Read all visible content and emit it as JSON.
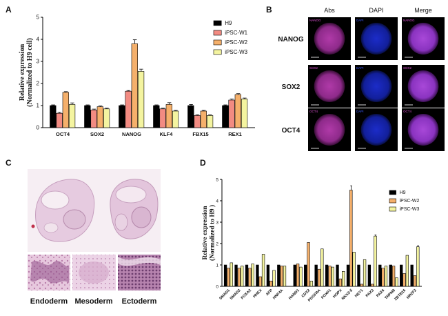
{
  "panels": {
    "a": "A",
    "b": "B",
    "c": "C",
    "d": "D"
  },
  "chart_data": [
    {
      "type": "bar",
      "panel": "A",
      "ylabel_line1": "Relative expression",
      "ylabel_line2": "(Normalized to H9 cell)",
      "ylim": [
        0,
        5
      ],
      "yticks": [
        "0",
        "1",
        "2",
        "3",
        "4",
        "5"
      ],
      "categories": [
        "OCT4",
        "SOX2",
        "NANOG",
        "KLF4",
        "FBX15",
        "REX1"
      ],
      "legend_position": "top-right",
      "grid": false,
      "series": [
        {
          "name": "H9",
          "color": "#000000",
          "values": [
            1.0,
            1.0,
            1.0,
            1.0,
            1.0,
            1.0
          ],
          "errors": [
            0.03,
            0.03,
            0.03,
            0.03,
            0.05,
            0.03
          ]
        },
        {
          "name": "iPSC-W1",
          "color": "#f28b82",
          "values": [
            0.65,
            0.8,
            1.65,
            0.85,
            0.55,
            1.25
          ],
          "errors": [
            0.04,
            0.04,
            0.03,
            0.03,
            0.03,
            0.05
          ]
        },
        {
          "name": "iPSC-W2",
          "color": "#f5b06b",
          "values": [
            1.6,
            0.95,
            3.8,
            1.05,
            0.75,
            1.5
          ],
          "errors": [
            0.03,
            0.03,
            0.18,
            0.08,
            0.03,
            0.04
          ]
        },
        {
          "name": "iPSC-W3",
          "color": "#f4f4a0",
          "values": [
            1.05,
            0.85,
            2.55,
            0.75,
            0.55,
            1.3
          ],
          "errors": [
            0.07,
            0.03,
            0.1,
            0.03,
            0.03,
            0.04
          ]
        }
      ]
    },
    {
      "type": "bar",
      "panel": "D",
      "ylabel_line1": "Relative expression",
      "ylabel_line2": "(Normalized to H9 )",
      "ylim": [
        0,
        5
      ],
      "yticks": [
        "0",
        "1",
        "2",
        "3",
        "4",
        "5"
      ],
      "categories": [
        "SMAD1",
        "SMAD2",
        "FOXA2",
        "HHEX",
        "AFP",
        "HNF4A",
        "HAND1",
        "CDX2",
        "PDGFRA",
        "FOXF1",
        "HOPX",
        "NKX2-5",
        "HEY1",
        "PAX3",
        "PAX6",
        "TRPM8",
        "ZBTB16",
        "NR2F2"
      ],
      "gap_after_index": 5,
      "legend_position": "top-right",
      "grid": false,
      "series": [
        {
          "name": "H9",
          "color": "#000000",
          "values": [
            1.0,
            1.0,
            1.0,
            1.0,
            1.0,
            1.0,
            1.0,
            1.0,
            1.0,
            1.0,
            1.0,
            1.0,
            1.0,
            1.0,
            1.0,
            1.0,
            1.0,
            1.0
          ]
        },
        {
          "name": "iPSC-W2",
          "color": "#f5b06b",
          "values": [
            0.85,
            0.85,
            0.85,
            0.45,
            0.25,
            0.95,
            1.05,
            2.05,
            0.8,
            0.95,
            0.35,
            4.5,
            0.1,
            0.1,
            0.85,
            0.95,
            0.6,
            0.5
          ],
          "errors": [
            0,
            0,
            0,
            0,
            0,
            0,
            0,
            0,
            0,
            0,
            0,
            0.2,
            0,
            0,
            0,
            0,
            0,
            0
          ]
        },
        {
          "name": "iPSC-W3",
          "color": "#f4f4a0",
          "values": [
            1.1,
            0.95,
            1.05,
            1.5,
            0.75,
            0.95,
            0.9,
            0.25,
            1.75,
            0.9,
            0.7,
            1.6,
            1.25,
            2.35,
            0.95,
            0.4,
            1.45,
            1.85
          ],
          "errors": [
            0,
            0,
            0,
            0,
            0,
            0,
            0,
            0,
            0,
            0,
            0,
            0,
            0,
            0.05,
            0,
            0,
            0,
            0.05
          ]
        }
      ]
    }
  ],
  "micrographs": {
    "columns": [
      "Abs",
      "DAPI",
      "Merge"
    ],
    "rows": [
      {
        "label": "NANOG",
        "tags": [
          "NANOG",
          "DAPI",
          "NANOG"
        ]
      },
      {
        "label": "SOX2",
        "tags": [
          "SOX2",
          "DAPI",
          "SOX2"
        ]
      },
      {
        "label": "OCT4",
        "tags": [
          "OCT4",
          "DAPI",
          "OCT4"
        ]
      }
    ]
  },
  "histology": {
    "labels": [
      "Endoderm",
      "Mesoderm",
      "Ectoderm"
    ]
  }
}
